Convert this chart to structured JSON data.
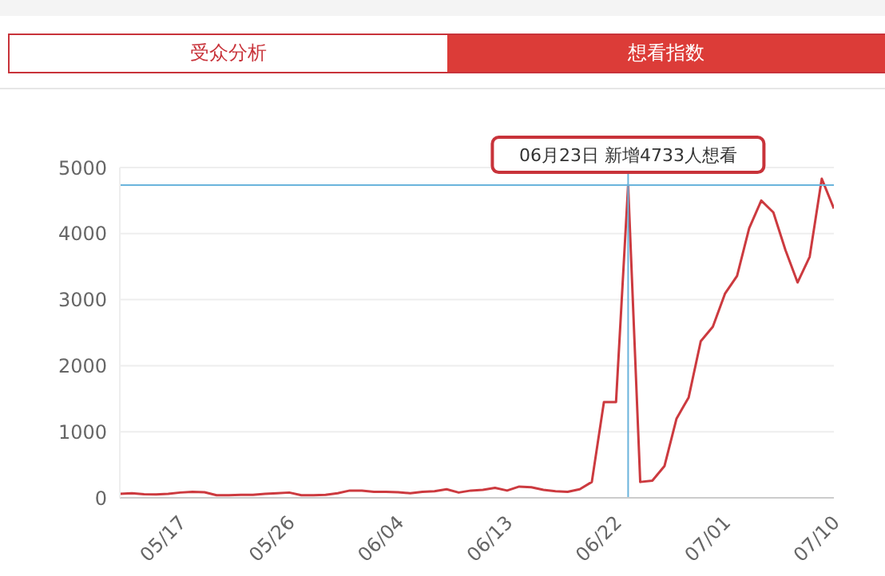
{
  "chart_data": {
    "type": "line",
    "annotations": [
      "受众分析",
      "想看指数",
      {
        "text": "06月23日 新增4733人想看",
        "x": "--06-23",
        "y": 4733
      }
    ],
    "x": [
      "--05-12",
      "--05-13",
      "--05-14",
      "--05-15",
      "--05-16",
      "--05-17",
      "--05-18",
      "--05-19",
      "--05-20",
      "--05-21",
      "--05-22",
      "--05-23",
      "--05-24",
      "--05-25",
      "--05-26",
      "--05-27",
      "--05-28",
      "--05-29",
      "--05-30",
      "--05-31",
      "--06-01",
      "--06-02",
      "--06-03",
      "--06-04",
      "--06-05",
      "--06-06",
      "--06-07",
      "--06-08",
      "--06-09",
      "--06-10",
      "--06-11",
      "--06-12",
      "--06-13",
      "--06-14",
      "--06-15",
      "--06-16",
      "--06-17",
      "--06-18",
      "--06-19",
      "--06-20",
      "--06-21",
      "--06-22",
      "--06-23",
      "--06-24",
      "--06-25",
      "--06-26",
      "--06-27",
      "--06-28",
      "--06-29",
      "--06-30",
      "--07-01",
      "--07-02",
      "--07-03",
      "--07-04",
      "--07-05",
      "--07-06",
      "--07-07",
      "--07-08",
      "--07-09",
      "--07-10"
    ],
    "series": [
      {
        "color": "#cc3a3f",
        "values": [
          60,
          70,
          55,
          50,
          60,
          80,
          90,
          85,
          40,
          40,
          45,
          45,
          60,
          70,
          80,
          40,
          40,
          45,
          70,
          110,
          110,
          90,
          90,
          85,
          70,
          90,
          100,
          130,
          80,
          110,
          120,
          150,
          110,
          170,
          160,
          120,
          100,
          90,
          130,
          240,
          1450,
          1450,
          4733,
          240,
          260,
          480,
          1200,
          1520,
          2370,
          2590,
          3090,
          3360,
          4080,
          4500,
          4320,
          3750,
          3260,
          3650,
          4830,
          4380
        ]
      }
    ],
    "xlim": [
      "--05-12",
      "--07-10"
    ],
    "xticks": [
      {
        "value": "--05-17",
        "label": "05/17"
      },
      {
        "value": "--05-26",
        "label": "05/26"
      },
      {
        "value": "--06-04",
        "label": "06/04"
      },
      {
        "value": "--06-13",
        "label": "06/13"
      },
      {
        "value": "--06-22",
        "label": "06/22"
      },
      {
        "value": "--07-01",
        "label": "07/01"
      },
      {
        "value": "--07-10",
        "label": "07/10"
      }
    ],
    "ylim": [
      0,
      5000
    ],
    "yticks": [
      0,
      1000,
      2000,
      3000,
      4000,
      5000
    ],
    "grid": "y",
    "marker": "none",
    "line_style": "solid",
    "legend": false,
    "ref_lines": [
      {
        "axis": "x",
        "value": "--06-23",
        "color": "#6ab4dc"
      },
      {
        "axis": "y",
        "value": 4733,
        "color": "#6ab4dc"
      }
    ]
  }
}
